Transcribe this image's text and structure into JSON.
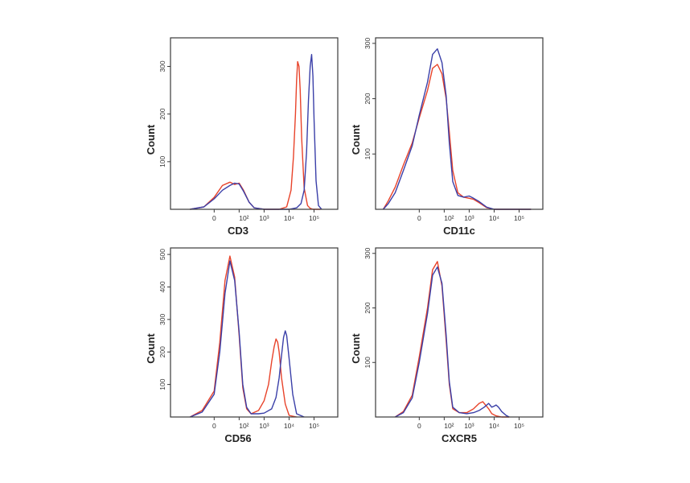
{
  "chart_data": [
    {
      "type": "line",
      "xlabel": "CD3",
      "ylabel": "Count",
      "x_ticks": [
        "0",
        "10²",
        "10³",
        "10⁴",
        "10⁵"
      ],
      "x_tick_values": [
        0,
        100,
        1000,
        10000,
        100000
      ],
      "y_ticks": [
        "100",
        "200",
        "300"
      ],
      "y_tick_values": [
        100,
        200,
        300
      ],
      "ylim": [
        0,
        360
      ],
      "x_scale": "biexponential",
      "series": [
        {
          "color": "#e8432a",
          "x": [
            -300,
            -80,
            0,
            30,
            60,
            80,
            100,
            150,
            250,
            400,
            1000,
            4000,
            8000,
            12000,
            15000,
            18000,
            20000,
            22000,
            25000,
            28000,
            32000,
            40000,
            55000,
            70000,
            90000,
            120000,
            180000
          ],
          "y": [
            0,
            5,
            25,
            50,
            57,
            52,
            55,
            40,
            15,
            3,
            0,
            0,
            5,
            40,
            110,
            200,
            270,
            310,
            300,
            250,
            150,
            45,
            8,
            2,
            0,
            0,
            0
          ]
        },
        {
          "color": "#3a3fa8",
          "x": [
            -300,
            -80,
            0,
            30,
            60,
            80,
            100,
            150,
            250,
            400,
            1000,
            10000,
            20000,
            30000,
            40000,
            50000,
            60000,
            70000,
            80000,
            90000,
            100000,
            120000,
            150000,
            200000
          ],
          "y": [
            0,
            5,
            22,
            40,
            50,
            55,
            53,
            38,
            15,
            3,
            0,
            0,
            3,
            12,
            40,
            120,
            230,
            300,
            325,
            280,
            190,
            60,
            8,
            0
          ]
        }
      ]
    },
    {
      "type": "line",
      "xlabel": "CD11c",
      "ylabel": "Count",
      "x_ticks": [
        "0",
        "10²",
        "10³",
        "10⁴",
        "10⁵"
      ],
      "x_tick_values": [
        0,
        100,
        1000,
        10000,
        100000
      ],
      "y_ticks": [
        "100",
        "200",
        "300"
      ],
      "y_tick_values": [
        100,
        200,
        300
      ],
      "ylim": [
        0,
        310
      ],
      "x_scale": "biexponential",
      "series": [
        {
          "color": "#e8432a",
          "x": [
            -700,
            -500,
            -300,
            -150,
            -50,
            0,
            30,
            50,
            70,
            90,
            120,
            160,
            220,
            350,
            600,
            1000,
            1500,
            2500,
            5000,
            10000,
            100000,
            300000
          ],
          "y": [
            0,
            15,
            40,
            80,
            120,
            165,
            215,
            255,
            262,
            245,
            200,
            140,
            70,
            30,
            22,
            20,
            18,
            12,
            3,
            0,
            0,
            0
          ]
        },
        {
          "color": "#3a3fa8",
          "x": [
            -700,
            -500,
            -300,
            -150,
            -50,
            0,
            30,
            50,
            70,
            90,
            120,
            160,
            220,
            350,
            600,
            1000,
            1500,
            2500,
            5000,
            10000,
            100000,
            300000
          ],
          "y": [
            0,
            10,
            30,
            70,
            115,
            170,
            230,
            280,
            290,
            265,
            205,
            120,
            50,
            25,
            22,
            24,
            20,
            14,
            4,
            0,
            0,
            0
          ]
        }
      ]
    },
    {
      "type": "line",
      "xlabel": "CD56",
      "ylabel": "Count",
      "x_ticks": [
        "0",
        "10²",
        "10³",
        "10⁴",
        "10⁵"
      ],
      "x_tick_values": [
        0,
        100,
        1000,
        10000,
        100000
      ],
      "y_ticks": [
        "100",
        "200",
        "300",
        "400",
        "500"
      ],
      "y_tick_values": [
        100,
        200,
        300,
        400,
        500
      ],
      "ylim": [
        0,
        520
      ],
      "x_scale": "biexponential",
      "series": [
        {
          "color": "#e8432a",
          "x": [
            -300,
            -100,
            0,
            20,
            40,
            60,
            80,
            100,
            140,
            200,
            300,
            600,
            1000,
            1500,
            2000,
            2500,
            3000,
            3500,
            4000,
            5000,
            7000,
            10000,
            20000
          ],
          "y": [
            0,
            20,
            80,
            230,
            420,
            495,
            430,
            250,
            90,
            25,
            10,
            20,
            50,
            100,
            170,
            215,
            240,
            230,
            200,
            120,
            40,
            5,
            0
          ]
        },
        {
          "color": "#3a3fa8",
          "x": [
            -300,
            -100,
            0,
            20,
            40,
            60,
            80,
            100,
            140,
            200,
            300,
            600,
            1000,
            2000,
            3000,
            4000,
            5000,
            6000,
            7000,
            8000,
            10000,
            14000,
            20000,
            40000
          ],
          "y": [
            0,
            15,
            70,
            200,
            380,
            480,
            420,
            260,
            100,
            30,
            10,
            10,
            12,
            25,
            60,
            120,
            190,
            245,
            265,
            250,
            180,
            70,
            10,
            0
          ]
        }
      ]
    },
    {
      "type": "line",
      "xlabel": "CXCR5",
      "ylabel": "Count",
      "x_ticks": [
        "0",
        "10²",
        "10³",
        "10⁴",
        "10⁵"
      ],
      "x_tick_values": [
        0,
        100,
        1000,
        10000,
        100000
      ],
      "y_ticks": [
        "100",
        "200",
        "300"
      ],
      "y_tick_values": [
        100,
        200,
        300
      ],
      "ylim": [
        0,
        310
      ],
      "x_scale": "biexponential",
      "series": [
        {
          "color": "#e8432a",
          "x": [
            -300,
            -150,
            -50,
            0,
            30,
            50,
            70,
            90,
            120,
            160,
            220,
            400,
            800,
            1500,
            2500,
            3500,
            4500,
            6000,
            8000,
            12000,
            20000,
            40000
          ],
          "y": [
            0,
            10,
            40,
            110,
            200,
            270,
            285,
            240,
            140,
            60,
            15,
            8,
            8,
            15,
            25,
            28,
            22,
            15,
            6,
            2,
            0,
            0
          ]
        },
        {
          "color": "#3a3fa8",
          "x": [
            -300,
            -150,
            -50,
            0,
            30,
            50,
            70,
            90,
            120,
            160,
            220,
            400,
            800,
            1500,
            2500,
            4000,
            6000,
            8000,
            10000,
            12000,
            15000,
            20000,
            30000,
            40000
          ],
          "y": [
            0,
            8,
            35,
            100,
            190,
            260,
            275,
            245,
            150,
            65,
            18,
            8,
            6,
            8,
            12,
            18,
            25,
            18,
            20,
            22,
            18,
            10,
            3,
            0
          ]
        }
      ]
    }
  ]
}
